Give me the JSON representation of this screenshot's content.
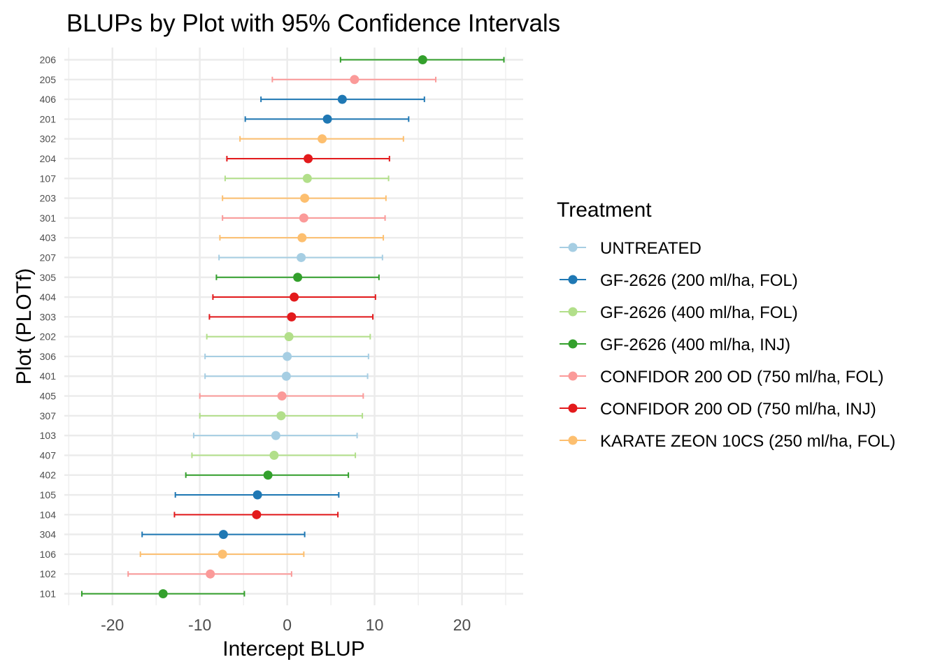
{
  "chart_data": {
    "type": "scatter",
    "title": "BLUPs by Plot with 95% Confidence Intervals",
    "xlabel": "Intercept BLUP",
    "ylabel": "Plot (PLOTf)",
    "xlim": [
      -25.5,
      27
    ],
    "xticks": [
      -20,
      -10,
      0,
      10,
      20
    ],
    "grid": true,
    "legend": {
      "title": "Treatment",
      "placement": "right",
      "items": [
        {
          "label": "UNTREATED",
          "color": "#a6cee3"
        },
        {
          "label": "GF-2626 (200 ml/ha, FOL)",
          "color": "#1f78b4"
        },
        {
          "label": "GF-2626 (400 ml/ha, FOL)",
          "color": "#b2df8a"
        },
        {
          "label": "GF-2626 (400 ml/ha, INJ)",
          "color": "#33a02c"
        },
        {
          "label": "CONFIDOR 200 OD (750 ml/ha, FOL)",
          "color": "#fb9a99"
        },
        {
          "label": "CONFIDOR 200 OD (750 ml/ha, INJ)",
          "color": "#e31a1c"
        },
        {
          "label": "KARATE ZEON 10CS (250 ml/ha, FOL)",
          "color": "#fdbf6f"
        }
      ]
    },
    "points": [
      {
        "plot": "206",
        "treatment": 3,
        "blup": 15.5,
        "lower": 6.1,
        "upper": 24.8
      },
      {
        "plot": "205",
        "treatment": 4,
        "blup": 7.7,
        "lower": -1.7,
        "upper": 17.0
      },
      {
        "plot": "406",
        "treatment": 1,
        "blup": 6.3,
        "lower": -3.0,
        "upper": 15.7
      },
      {
        "plot": "201",
        "treatment": 1,
        "blup": 4.6,
        "lower": -4.8,
        "upper": 13.9
      },
      {
        "plot": "302",
        "treatment": 6,
        "blup": 4.0,
        "lower": -5.4,
        "upper": 13.3
      },
      {
        "plot": "204",
        "treatment": 5,
        "blup": 2.4,
        "lower": -6.9,
        "upper": 11.7
      },
      {
        "plot": "107",
        "treatment": 2,
        "blup": 2.3,
        "lower": -7.1,
        "upper": 11.6
      },
      {
        "plot": "203",
        "treatment": 6,
        "blup": 2.0,
        "lower": -7.4,
        "upper": 11.3
      },
      {
        "plot": "301",
        "treatment": 4,
        "blup": 1.9,
        "lower": -7.4,
        "upper": 11.2
      },
      {
        "plot": "403",
        "treatment": 6,
        "blup": 1.7,
        "lower": -7.7,
        "upper": 11.0
      },
      {
        "plot": "207",
        "treatment": 0,
        "blup": 1.6,
        "lower": -7.8,
        "upper": 10.9
      },
      {
        "plot": "305",
        "treatment": 3,
        "blup": 1.2,
        "lower": -8.1,
        "upper": 10.5
      },
      {
        "plot": "404",
        "treatment": 5,
        "blup": 0.8,
        "lower": -8.5,
        "upper": 10.1
      },
      {
        "plot": "303",
        "treatment": 5,
        "blup": 0.5,
        "lower": -8.9,
        "upper": 9.8
      },
      {
        "plot": "202",
        "treatment": 2,
        "blup": 0.2,
        "lower": -9.2,
        "upper": 9.5
      },
      {
        "plot": "306",
        "treatment": 0,
        "blup": 0.0,
        "lower": -9.4,
        "upper": 9.3
      },
      {
        "plot": "401",
        "treatment": 0,
        "blup": -0.1,
        "lower": -9.4,
        "upper": 9.2
      },
      {
        "plot": "405",
        "treatment": 4,
        "blup": -0.6,
        "lower": -10.0,
        "upper": 8.7
      },
      {
        "plot": "307",
        "treatment": 2,
        "blup": -0.7,
        "lower": -10.0,
        "upper": 8.6
      },
      {
        "plot": "103",
        "treatment": 0,
        "blup": -1.3,
        "lower": -10.7,
        "upper": 8.0
      },
      {
        "plot": "407",
        "treatment": 2,
        "blup": -1.5,
        "lower": -10.9,
        "upper": 7.8
      },
      {
        "plot": "402",
        "treatment": 3,
        "blup": -2.2,
        "lower": -11.6,
        "upper": 7.0
      },
      {
        "plot": "105",
        "treatment": 1,
        "blup": -3.4,
        "lower": -12.8,
        "upper": 5.9
      },
      {
        "plot": "104",
        "treatment": 5,
        "blup": -3.5,
        "lower": -12.9,
        "upper": 5.8
      },
      {
        "plot": "304",
        "treatment": 1,
        "blup": -7.3,
        "lower": -16.6,
        "upper": 2.0
      },
      {
        "plot": "106",
        "treatment": 6,
        "blup": -7.4,
        "lower": -16.8,
        "upper": 1.9
      },
      {
        "plot": "102",
        "treatment": 4,
        "blup": -8.8,
        "lower": -18.2,
        "upper": 0.5
      },
      {
        "plot": "101",
        "treatment": 3,
        "blup": -14.2,
        "lower": -23.5,
        "upper": -4.9
      }
    ]
  }
}
